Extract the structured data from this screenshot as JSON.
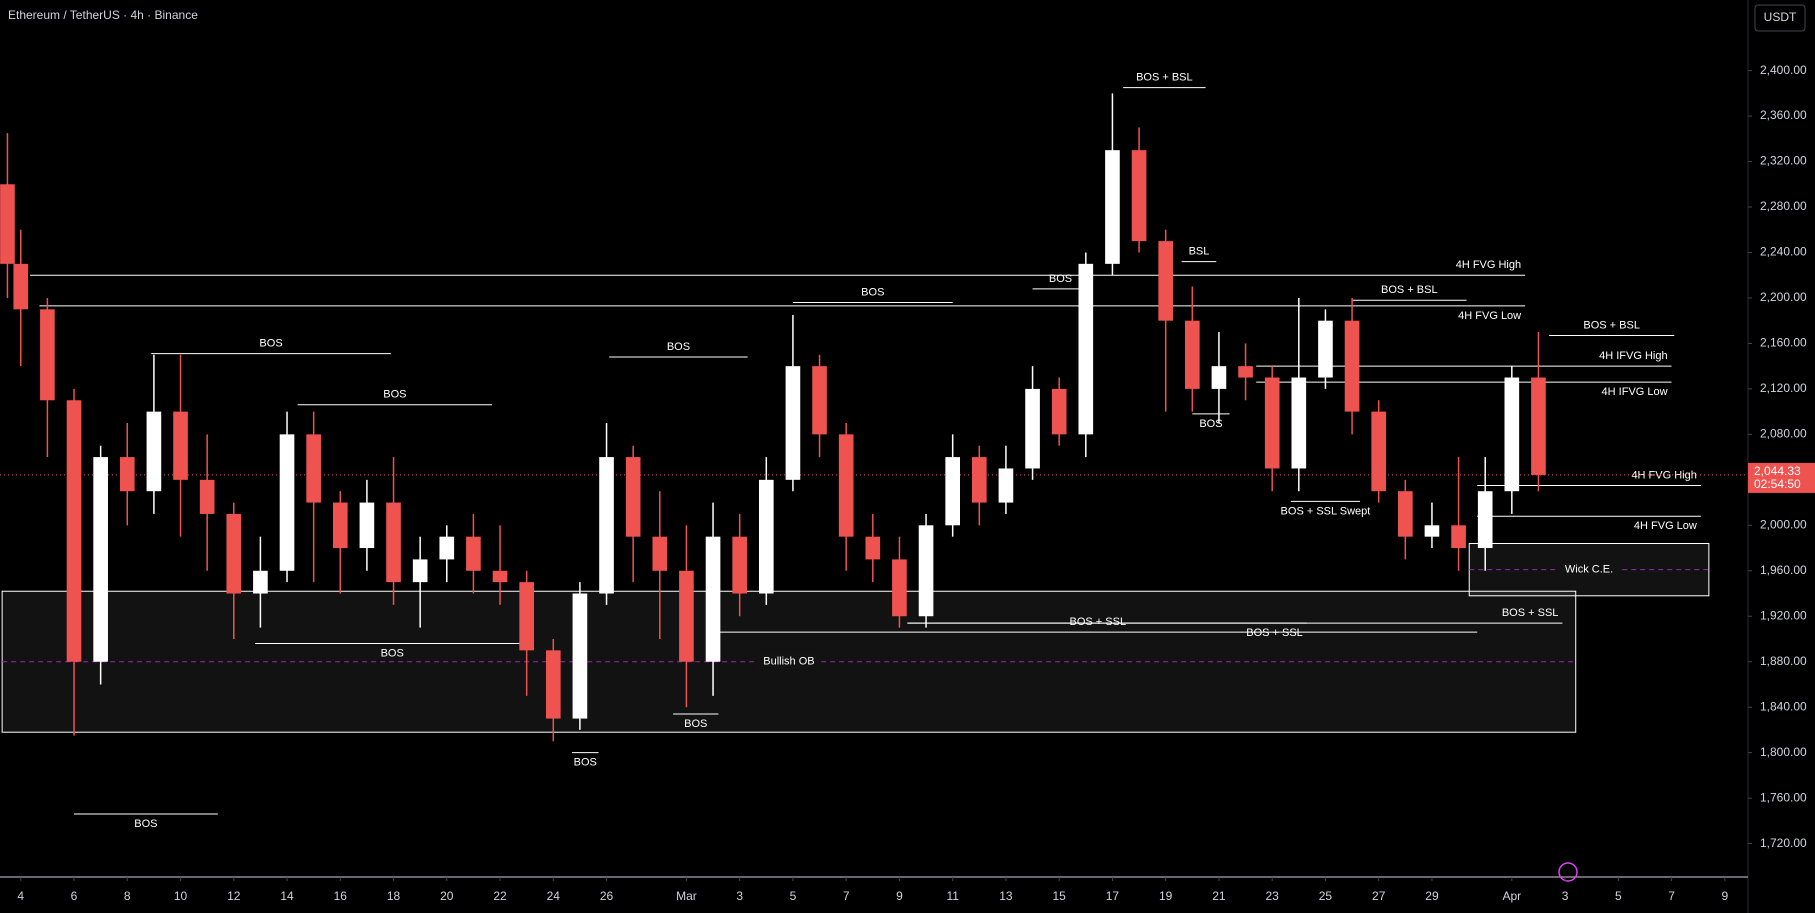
{
  "chart_data": {
    "type": "candlestick",
    "title": "Ethereum / TetherUS · 4h · Binance",
    "currency": "USDT",
    "up_color": "#ffffff",
    "down_color": "#ef5350",
    "x": [
      -0.5,
      0,
      1,
      2,
      3,
      4,
      5,
      6,
      7,
      8,
      9,
      10,
      11,
      12,
      13,
      14,
      15,
      16,
      17,
      18,
      19,
      20,
      21,
      22,
      23,
      24,
      25,
      26,
      27,
      28,
      29,
      30,
      31,
      32,
      33,
      34,
      35,
      36,
      37,
      38,
      39,
      40,
      41,
      42,
      43,
      44,
      45,
      46,
      47,
      48,
      49,
      50,
      51,
      52,
      53,
      54,
      55,
      56,
      57
    ],
    "open": [
      2300,
      2230,
      2190,
      2110,
      1880,
      2060,
      2030,
      2100,
      2040,
      2010,
      1940,
      1960,
      2080,
      2020,
      1980,
      2020,
      1950,
      1970,
      1990,
      1960,
      1950,
      1890,
      1830,
      1940,
      2060,
      1990,
      1960,
      1880,
      1990,
      1940,
      2040,
      2140,
      2080,
      1990,
      1970,
      1920,
      2000,
      2060,
      2020,
      2050,
      2120,
      2080,
      2230,
      2330,
      2250,
      2180,
      2120,
      2140,
      2130,
      2050,
      2130,
      2180,
      2100,
      2030,
      1990,
      2000,
      1980,
      2030,
      2130
    ],
    "high": [
      2345,
      2260,
      2200,
      2120,
      2070,
      2090,
      2150,
      2150,
      2080,
      2020,
      1990,
      2100,
      2100,
      2030,
      2040,
      2060,
      1990,
      2000,
      2010,
      2000,
      1960,
      1900,
      1950,
      2090,
      2070,
      2030,
      2000,
      2020,
      2010,
      2060,
      2185,
      2150,
      2090,
      2010,
      1990,
      2010,
      2080,
      2070,
      2070,
      2140,
      2130,
      2240,
      2380,
      2350,
      2260,
      2210,
      2170,
      2160,
      2140,
      2200,
      2190,
      2200,
      2110,
      2040,
      2020,
      2060,
      2060,
      2140,
      2170
    ],
    "low": [
      2200,
      2140,
      2060,
      1815,
      1860,
      2000,
      2010,
      1990,
      1960,
      1900,
      1910,
      1950,
      1950,
      1940,
      1960,
      1930,
      1910,
      1950,
      1940,
      1930,
      1850,
      1810,
      1820,
      1930,
      1950,
      1900,
      1840,
      1850,
      1920,
      1930,
      2030,
      2060,
      1960,
      1950,
      1910,
      1910,
      1990,
      2000,
      2010,
      2040,
      2070,
      2060,
      2220,
      2240,
      2100,
      2100,
      2090,
      2110,
      2030,
      2030,
      2120,
      2080,
      2020,
      1970,
      1980,
      1960,
      1960,
      2010,
      2030
    ],
    "close": [
      2230,
      2190,
      2110,
      1880,
      2060,
      2030,
      2100,
      2040,
      2010,
      1940,
      1960,
      2080,
      2020,
      1980,
      2020,
      1950,
      1970,
      1990,
      1960,
      1950,
      1890,
      1830,
      1940,
      2060,
      1990,
      1960,
      1880,
      1990,
      1940,
      2040,
      2140,
      2080,
      1990,
      1970,
      1920,
      2000,
      2060,
      2020,
      2050,
      2120,
      2080,
      2230,
      2330,
      2250,
      2180,
      2120,
      2140,
      2130,
      2050,
      2130,
      2180,
      2100,
      2030,
      1990,
      2000,
      1980,
      2030,
      2130,
      2044.33
    ],
    "last_price": {
      "value": 2044.33,
      "label": "2,044.33"
    },
    "countdown": "02:54:50",
    "xlim": [
      -0.78,
      64.87
    ],
    "ylim": [
      1691.5,
      2462.1
    ],
    "yticks": [
      {
        "value": 1720,
        "label": "1,720.00"
      },
      {
        "value": 1760,
        "label": "1,760.00"
      },
      {
        "value": 1800,
        "label": "1,800.00"
      },
      {
        "value": 1840,
        "label": "1,840.00"
      },
      {
        "value": 1880,
        "label": "1,880.00"
      },
      {
        "value": 1920,
        "label": "1,920.00"
      },
      {
        "value": 1960,
        "label": "1,960.00"
      },
      {
        "value": 2000,
        "label": "2,000.00"
      },
      {
        "value": 2040,
        "label": "2,040.00"
      },
      {
        "value": 2080,
        "label": "2,080.00"
      },
      {
        "value": 2120,
        "label": "2,120.00"
      },
      {
        "value": 2160,
        "label": "2,160.00"
      },
      {
        "value": 2200,
        "label": "2,200.00"
      },
      {
        "value": 2240,
        "label": "2,240.00"
      },
      {
        "value": 2280,
        "label": "2,280.00"
      },
      {
        "value": 2320,
        "label": "2,320.00"
      },
      {
        "value": 2360,
        "label": "2,360.00"
      },
      {
        "value": 2400,
        "label": "2,400.00"
      }
    ],
    "xticks": [
      {
        "value": 0,
        "label": "4"
      },
      {
        "value": 2,
        "label": "6"
      },
      {
        "value": 4,
        "label": "8"
      },
      {
        "value": 6,
        "label": "10"
      },
      {
        "value": 8,
        "label": "12"
      },
      {
        "value": 10,
        "label": "14"
      },
      {
        "value": 12,
        "label": "16"
      },
      {
        "value": 14,
        "label": "18"
      },
      {
        "value": 16,
        "label": "20"
      },
      {
        "value": 18,
        "label": "22"
      },
      {
        "value": 20,
        "label": "24"
      },
      {
        "value": 22,
        "label": "26"
      },
      {
        "value": 25,
        "label": "Mar"
      },
      {
        "value": 27,
        "label": "3"
      },
      {
        "value": 29,
        "label": "5"
      },
      {
        "value": 31,
        "label": "7"
      },
      {
        "value": 33,
        "label": "9"
      },
      {
        "value": 35,
        "label": "11"
      },
      {
        "value": 37,
        "label": "13"
      },
      {
        "value": 39,
        "label": "15"
      },
      {
        "value": 41,
        "label": "17"
      },
      {
        "value": 43,
        "label": "19"
      },
      {
        "value": 45,
        "label": "21"
      },
      {
        "value": 47,
        "label": "23"
      },
      {
        "value": 49,
        "label": "25"
      },
      {
        "value": 51,
        "label": "27"
      },
      {
        "value": 53,
        "label": "29"
      },
      {
        "value": 56,
        "label": "Apr"
      },
      {
        "value": 58,
        "label": "3"
      },
      {
        "value": 60,
        "label": "5"
      },
      {
        "value": 62,
        "label": "7"
      },
      {
        "value": 64,
        "label": "9"
      }
    ],
    "zones": [
      {
        "label": "Bullish OB",
        "low": 1818,
        "high": 1942,
        "from": -0.7,
        "to": 58.4
      },
      {
        "label": "Wick C.E.",
        "low": 1938,
        "high": 1984,
        "from": 54.4,
        "to": 63.4
      }
    ],
    "levels": [
      {
        "label": "BOS + BSL",
        "value": 2385,
        "from": 41.4,
        "to": 44.5,
        "label_at": "middle",
        "label_side": "above"
      },
      {
        "label": "BSL",
        "value": 2232,
        "from": 43.6,
        "to": 44.9,
        "label_at": "middle",
        "label_side": "above"
      },
      {
        "label": "4H FVG High",
        "value": 2220,
        "from": 0.35,
        "to": 56.5,
        "label_at": "end",
        "label_side": "above"
      },
      {
        "label": "4H FVG Low",
        "value": 2193,
        "from": 0.7,
        "to": 56.5,
        "label_at": "end",
        "label_side": "below"
      },
      {
        "label": "BOS",
        "value": 2208,
        "from": 38,
        "to": 40.1,
        "label_at": "middle",
        "label_side": "above"
      },
      {
        "label": "BOS + BSL",
        "value": 2198,
        "from": 50,
        "to": 54.3,
        "label_at": "middle",
        "label_side": "above"
      },
      {
        "label": "BOS",
        "value": 2196,
        "from": 29,
        "to": 35,
        "label_at": "middle",
        "label_side": "above"
      },
      {
        "label": "BOS",
        "value": 2151,
        "from": 4.9,
        "to": 13.9,
        "label_at": "middle",
        "label_side": "above"
      },
      {
        "label": "BOS",
        "value": 2106,
        "from": 10.4,
        "to": 17.7,
        "label_at": "middle",
        "label_side": "above"
      },
      {
        "label": "BOS",
        "value": 2148,
        "from": 22.1,
        "to": 27.3,
        "label_at": "middle",
        "label_side": "above"
      },
      {
        "label": "BOS + BSL",
        "value": 2167,
        "from": 57.4,
        "to": 62.1,
        "label_at": "middle",
        "label_side": "above"
      },
      {
        "label": "4H IFVG High",
        "value": 2140,
        "from": 46.4,
        "to": 62,
        "label_at": "end",
        "label_side": "above"
      },
      {
        "label": "4H IFVG Low",
        "value": 2126,
        "from": 46.4,
        "to": 62,
        "label_at": "end",
        "label_side": "below"
      },
      {
        "label": "BOS",
        "value": 2098,
        "from": 44,
        "to": 45.4,
        "label_at": "middle",
        "label_side": "below"
      },
      {
        "label": "4H FVG High",
        "value": 2035,
        "from": 54.7,
        "to": 63.1,
        "label_at": "end",
        "label_side": "above"
      },
      {
        "label": "4H FVG Low",
        "value": 2008,
        "from": 54.7,
        "to": 63.1,
        "label_at": "end",
        "label_side": "below"
      },
      {
        "label": "BOS + SSL Swept",
        "value": 2021,
        "from": 47.7,
        "to": 50.3,
        "label_at": "middle",
        "label_side": "below"
      },
      {
        "label": "BOS + SSL",
        "value": 1914,
        "from": 33.3,
        "to": 57.9,
        "label_at": "end",
        "label_side": "above"
      },
      {
        "label": "BOS + SSL",
        "value": 1906,
        "from": 26.2,
        "to": 54.7,
        "label_at": "middle",
        "label_side": "above"
      },
      {
        "label": "BOS + SSL",
        "value": 1914,
        "from": 33.3,
        "to": 48.3,
        "label_at": "end",
        "label_side": "below"
      },
      {
        "label": "BOS",
        "value": 1896,
        "from": 8.8,
        "to": 19.1,
        "label_at": "middle",
        "label_side": "below"
      },
      {
        "label": "BOS",
        "value": 1834,
        "from": 24.5,
        "to": 26.2,
        "label_at": "middle",
        "label_side": "below"
      },
      {
        "label": "BOS",
        "value": 1800,
        "from": 20.7,
        "to": 21.7,
        "label_at": "middle",
        "label_side": "below"
      },
      {
        "label": "BOS",
        "value": 1746,
        "from": 2,
        "to": 7.4,
        "label_at": "middle",
        "label_side": "below"
      }
    ]
  }
}
